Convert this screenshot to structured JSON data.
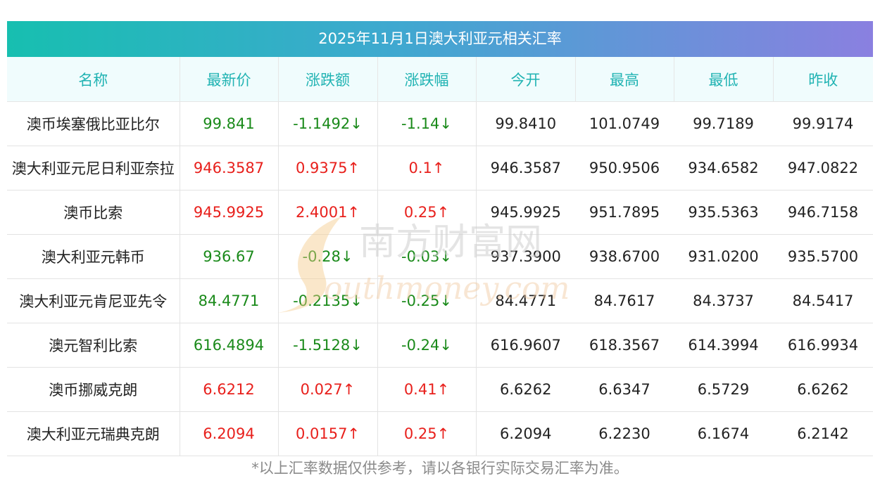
{
  "title": "2025年11月1日澳大利亚元相关汇率",
  "columns": [
    "名称",
    "最新价",
    "涨跌额",
    "涨跌幅",
    "今开",
    "最高",
    "最低",
    "昨收"
  ],
  "rows": [
    {
      "name": "澳币埃塞俄比亚比尔",
      "latest": "99.841",
      "change": "-1.1492↓",
      "pct": "-1.14↓",
      "open": "99.8410",
      "high": "101.0749",
      "low": "99.7189",
      "prev": "99.9174",
      "dir": "down"
    },
    {
      "name": "澳大利亚元尼日利亚奈拉",
      "latest": "946.3587",
      "change": "0.9375↑",
      "pct": "0.1↑",
      "open": "946.3587",
      "high": "950.9506",
      "low": "934.6582",
      "prev": "947.0822",
      "dir": "up"
    },
    {
      "name": "澳币比索",
      "latest": "945.9925",
      "change": "2.4001↑",
      "pct": "0.25↑",
      "open": "945.9925",
      "high": "951.7895",
      "low": "935.5363",
      "prev": "946.7158",
      "dir": "up"
    },
    {
      "name": "澳大利亚元韩币",
      "latest": "936.67",
      "change": "-0.28↓",
      "pct": "-0.03↓",
      "open": "937.3900",
      "high": "938.6700",
      "low": "931.0200",
      "prev": "935.5700",
      "dir": "down"
    },
    {
      "name": "澳大利亚元肯尼亚先令",
      "latest": "84.4771",
      "change": "-0.2135↓",
      "pct": "-0.25↓",
      "open": "84.4771",
      "high": "84.7617",
      "low": "84.3737",
      "prev": "84.5417",
      "dir": "down"
    },
    {
      "name": "澳元智利比索",
      "latest": "616.4894",
      "change": "-1.5128↓",
      "pct": "-0.24↓",
      "open": "616.9607",
      "high": "618.3567",
      "low": "614.3994",
      "prev": "616.9934",
      "dir": "down"
    },
    {
      "name": "澳币挪威克朗",
      "latest": "6.6212",
      "change": "0.027↑",
      "pct": "0.41↑",
      "open": "6.6262",
      "high": "6.6347",
      "low": "6.5729",
      "prev": "6.6262",
      "dir": "up"
    },
    {
      "name": "澳大利亚元瑞典克朗",
      "latest": "6.2094",
      "change": "0.0157↑",
      "pct": "0.25↑",
      "open": "6.2094",
      "high": "6.2230",
      "low": "6.1674",
      "prev": "6.2142",
      "dir": "up"
    }
  ],
  "watermark": {
    "cn": "南方财富网",
    "en": "outhmoney.com"
  },
  "footnote": "*以上汇率数据仅供参考，请以各银行实际交易汇率为准。",
  "colors": {
    "up": "#e8201c",
    "down": "#1a8a1a",
    "header": "#21b3b3"
  }
}
